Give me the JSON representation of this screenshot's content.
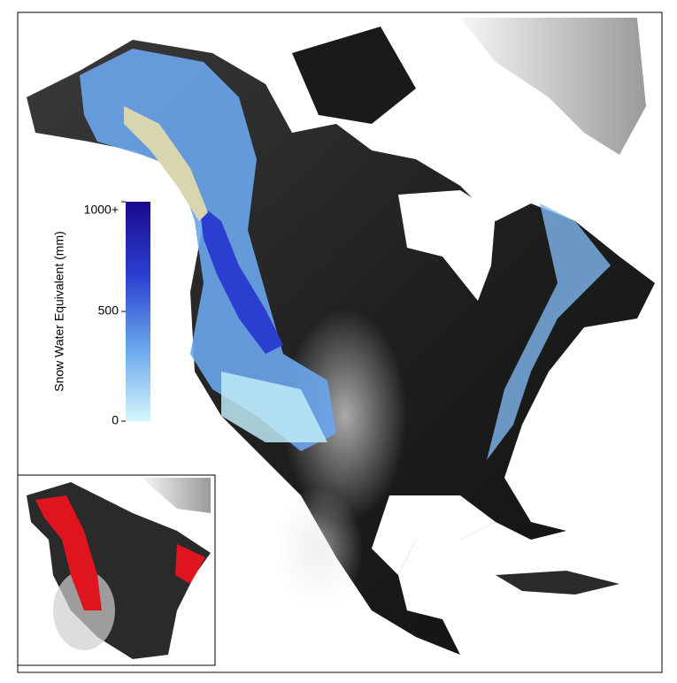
{
  "colorbar": {
    "label": "Snow Water Equivalent (mm)",
    "lim": [
      0,
      1000
    ],
    "ticks": [
      {
        "value": 1000,
        "label": "1000+"
      },
      500,
      0
    ],
    "colors": [
      "#d4f6fb",
      "#6aa6ec",
      "#2a3fd0",
      "#1b0a8e"
    ]
  }
}
